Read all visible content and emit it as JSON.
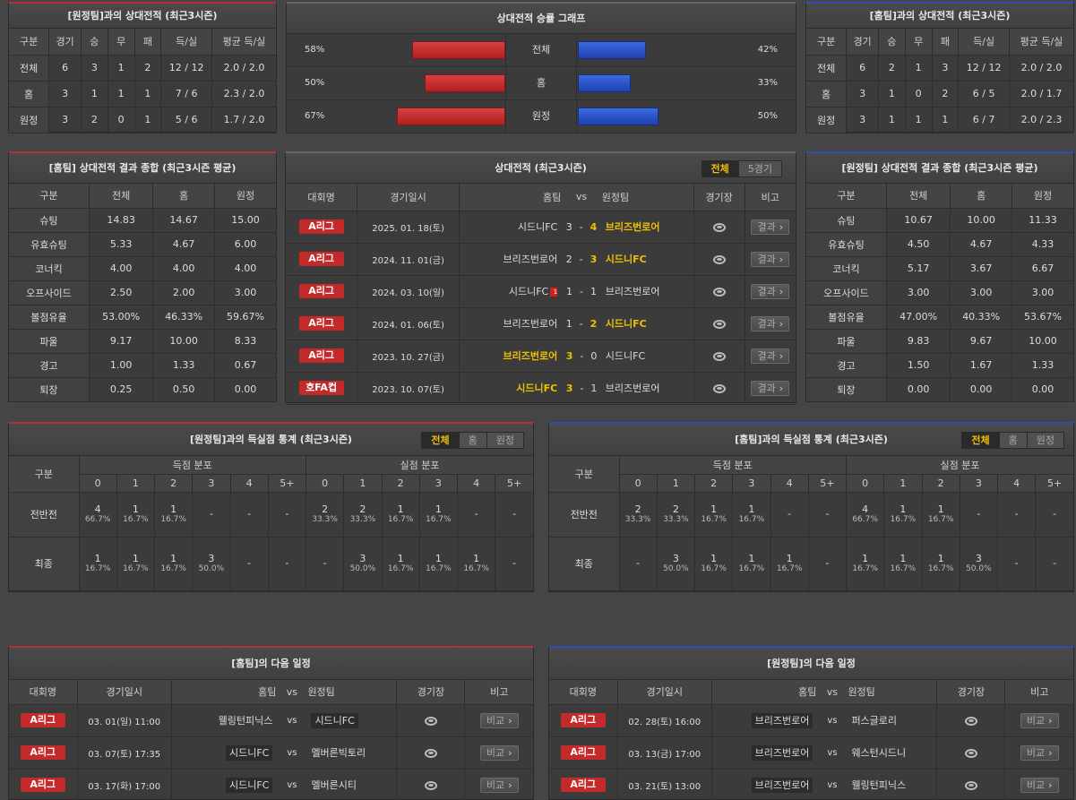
{
  "h2h_left": {
    "title": "[원정팀]과의 상대전적 (최근3시즌)",
    "headers": [
      "구분",
      "경기",
      "승",
      "무",
      "패",
      "득/실",
      "평균 득/실"
    ],
    "rows": [
      [
        "전체",
        "6",
        "3",
        "1",
        "2",
        "12 / 12",
        "2.0 / 2.0"
      ],
      [
        "홈",
        "3",
        "1",
        "1",
        "1",
        "7 / 6",
        "2.3 / 2.0"
      ],
      [
        "원정",
        "3",
        "2",
        "0",
        "1",
        "5 / 6",
        "1.7 / 2.0"
      ]
    ]
  },
  "graph": {
    "title": "상대전적 승률 그래프",
    "rows": [
      {
        "label": "전체",
        "left": "58%",
        "right": "42%",
        "lv": 58,
        "rv": 42
      },
      {
        "label": "홈",
        "left": "50%",
        "right": "33%",
        "lv": 50,
        "rv": 33
      },
      {
        "label": "원정",
        "left": "67%",
        "right": "50%",
        "lv": 67,
        "rv": 50
      }
    ]
  },
  "h2h_right": {
    "title": "[홈팀]과의 상대전적 (최근3시즌)",
    "headers": [
      "구분",
      "경기",
      "승",
      "무",
      "패",
      "득/실",
      "평균 득/실"
    ],
    "rows": [
      [
        "전체",
        "6",
        "2",
        "1",
        "3",
        "12 / 12",
        "2.0 / 2.0"
      ],
      [
        "홈",
        "3",
        "1",
        "0",
        "2",
        "6 / 5",
        "2.0 / 1.7"
      ],
      [
        "원정",
        "3",
        "1",
        "1",
        "1",
        "6 / 7",
        "2.0 / 2.3"
      ]
    ]
  },
  "summary_left": {
    "title": "[홈팀] 상대전적 결과 종합 (최근3시즌 평균)",
    "headers": [
      "구분",
      "전체",
      "홈",
      "원정"
    ],
    "rows": [
      [
        "슈팅",
        "14.83",
        "14.67",
        "15.00"
      ],
      [
        "유효슈팅",
        "5.33",
        "4.67",
        "6.00"
      ],
      [
        "코너킥",
        "4.00",
        "4.00",
        "4.00"
      ],
      [
        "오프사이드",
        "2.50",
        "2.00",
        "3.00"
      ],
      [
        "볼점유율",
        "53.00%",
        "46.33%",
        "59.67%"
      ],
      [
        "파울",
        "9.17",
        "10.00",
        "8.33"
      ],
      [
        "경고",
        "1.00",
        "1.33",
        "0.67"
      ],
      [
        "퇴장",
        "0.25",
        "0.50",
        "0.00"
      ]
    ]
  },
  "summary_right": {
    "title": "[원정팀] 상대전적 결과 종합 (최근3시즌 평균)",
    "headers": [
      "구분",
      "전체",
      "홈",
      "원정"
    ],
    "rows": [
      [
        "슈팅",
        "10.67",
        "10.00",
        "11.33"
      ],
      [
        "유효슈팅",
        "4.50",
        "4.67",
        "4.33"
      ],
      [
        "코너킥",
        "5.17",
        "3.67",
        "6.67"
      ],
      [
        "오프사이드",
        "3.00",
        "3.00",
        "3.00"
      ],
      [
        "볼점유율",
        "47.00%",
        "40.33%",
        "53.67%"
      ],
      [
        "파울",
        "9.83",
        "9.67",
        "10.00"
      ],
      [
        "경고",
        "1.50",
        "1.67",
        "1.33"
      ],
      [
        "퇴장",
        "0.00",
        "0.00",
        "0.00"
      ]
    ]
  },
  "matches": {
    "title": "상대전적 (최근3시즌)",
    "tabs": [
      "전체",
      "5경기"
    ],
    "headers": {
      "comp": "대회명",
      "date": "경기일시",
      "home": "홈팀",
      "vs": "vs",
      "away": "원정팀",
      "venue": "경기장",
      "note": "비고"
    },
    "button": "결과",
    "rows": [
      {
        "comp": "A리그",
        "date": "2025. 01. 18(토)",
        "home": "시드니FC",
        "hs": "3",
        "as": "4",
        "away": "브리즈번로어",
        "win": "away",
        "card": ""
      },
      {
        "comp": "A리그",
        "date": "2024. 11. 01(금)",
        "home": "브리즈번로어",
        "hs": "2",
        "as": "3",
        "away": "시드니FC",
        "win": "away",
        "card": ""
      },
      {
        "comp": "A리그",
        "date": "2024. 03. 10(일)",
        "home": "시드니FC",
        "hs": "1",
        "as": "1",
        "away": "브리즈번로어",
        "win": "",
        "card": "1"
      },
      {
        "comp": "A리그",
        "date": "2024. 01. 06(토)",
        "home": "브리즈번로어",
        "hs": "1",
        "as": "2",
        "away": "시드니FC",
        "win": "away",
        "card": ""
      },
      {
        "comp": "A리그",
        "date": "2023. 10. 27(금)",
        "home": "브리즈번로어",
        "hs": "3",
        "as": "0",
        "away": "시드니FC",
        "win": "home",
        "card": ""
      },
      {
        "comp": "호FA컵",
        "date": "2023. 10. 07(토)",
        "home": "시드니FC",
        "hs": "3",
        "as": "1",
        "away": "브리즈번로어",
        "win": "home",
        "card": ""
      }
    ]
  },
  "goals_left": {
    "title": "[원정팀]과의 득실점 통계 (최근3시즌)",
    "tabs": [
      "전체",
      "홈",
      "원정"
    ],
    "col_label": "구분",
    "scored": "득점 분포",
    "conceded": "실점 분포",
    "cols": [
      "0",
      "1",
      "2",
      "3",
      "4",
      "5+"
    ],
    "rows": [
      {
        "label": "전반전",
        "cells": [
          [
            "4",
            "66.7%"
          ],
          [
            "1",
            "16.7%"
          ],
          [
            "1",
            "16.7%"
          ],
          [
            "-",
            ""
          ],
          [
            "-",
            ""
          ],
          [
            "-",
            ""
          ],
          [
            "2",
            "33.3%"
          ],
          [
            "2",
            "33.3%"
          ],
          [
            "1",
            "16.7%"
          ],
          [
            "1",
            "16.7%"
          ],
          [
            "-",
            ""
          ],
          [
            "-",
            ""
          ]
        ]
      },
      {
        "label": "최종",
        "cells": [
          [
            "1",
            "16.7%"
          ],
          [
            "1",
            "16.7%"
          ],
          [
            "1",
            "16.7%"
          ],
          [
            "3",
            "50.0%"
          ],
          [
            "-",
            ""
          ],
          [
            "-",
            ""
          ],
          [
            "-",
            ""
          ],
          [
            "3",
            "50.0%"
          ],
          [
            "1",
            "16.7%"
          ],
          [
            "1",
            "16.7%"
          ],
          [
            "1",
            "16.7%"
          ],
          [
            "-",
            ""
          ]
        ]
      }
    ]
  },
  "goals_right": {
    "title": "[홈팀]과의 득실점 통계 (최근3시즌)",
    "tabs": [
      "전체",
      "홈",
      "원정"
    ],
    "col_label": "구분",
    "scored": "득점 분포",
    "conceded": "실점 분포",
    "cols": [
      "0",
      "1",
      "2",
      "3",
      "4",
      "5+"
    ],
    "rows": [
      {
        "label": "전반전",
        "cells": [
          [
            "2",
            "33.3%"
          ],
          [
            "2",
            "33.3%"
          ],
          [
            "1",
            "16.7%"
          ],
          [
            "1",
            "16.7%"
          ],
          [
            "-",
            ""
          ],
          [
            "-",
            ""
          ],
          [
            "4",
            "66.7%"
          ],
          [
            "1",
            "16.7%"
          ],
          [
            "1",
            "16.7%"
          ],
          [
            "-",
            ""
          ],
          [
            "-",
            ""
          ],
          [
            "-",
            ""
          ]
        ]
      },
      {
        "label": "최종",
        "cells": [
          [
            "-",
            ""
          ],
          [
            "3",
            "50.0%"
          ],
          [
            "1",
            "16.7%"
          ],
          [
            "1",
            "16.7%"
          ],
          [
            "1",
            "16.7%"
          ],
          [
            "-",
            ""
          ],
          [
            "1",
            "16.7%"
          ],
          [
            "1",
            "16.7%"
          ],
          [
            "1",
            "16.7%"
          ],
          [
            "3",
            "50.0%"
          ],
          [
            "-",
            ""
          ],
          [
            "-",
            ""
          ]
        ]
      }
    ]
  },
  "next_left": {
    "title": "[홈팀]의 다음 일정",
    "headers": {
      "comp": "대회명",
      "date": "경기일시",
      "home": "홈팀",
      "vs": "vs",
      "away": "원정팀",
      "venue": "경기장",
      "note": "비고"
    },
    "button": "비교",
    "rows": [
      {
        "comp": "A리그",
        "date": "03. 01(일) 11:00",
        "home": "웰링턴피닉스",
        "away": "시드니FC",
        "box": "away"
      },
      {
        "comp": "A리그",
        "date": "03. 07(토) 17:35",
        "home": "시드니FC",
        "away": "멜버른빅토리",
        "box": "home"
      },
      {
        "comp": "A리그",
        "date": "03. 17(화) 17:00",
        "home": "시드니FC",
        "away": "멜버른시티",
        "box": "home"
      }
    ]
  },
  "next_right": {
    "title": "[원정팀]의 다음 일정",
    "headers": {
      "comp": "대회명",
      "date": "경기일시",
      "home": "홈팀",
      "vs": "vs",
      "away": "원정팀",
      "venue": "경기장",
      "note": "비고"
    },
    "button": "비교",
    "rows": [
      {
        "comp": "A리그",
        "date": "02. 28(토) 16:00",
        "home": "브리즈번로어",
        "away": "퍼스글로리",
        "box": "home"
      },
      {
        "comp": "A리그",
        "date": "03. 13(금) 17:00",
        "home": "브리즈번로어",
        "away": "웨스턴시드니",
        "box": "home"
      },
      {
        "comp": "A리그",
        "date": "03. 21(토) 13:00",
        "home": "브리즈번로어",
        "away": "웰링턴피닉스",
        "box": "home"
      }
    ]
  }
}
